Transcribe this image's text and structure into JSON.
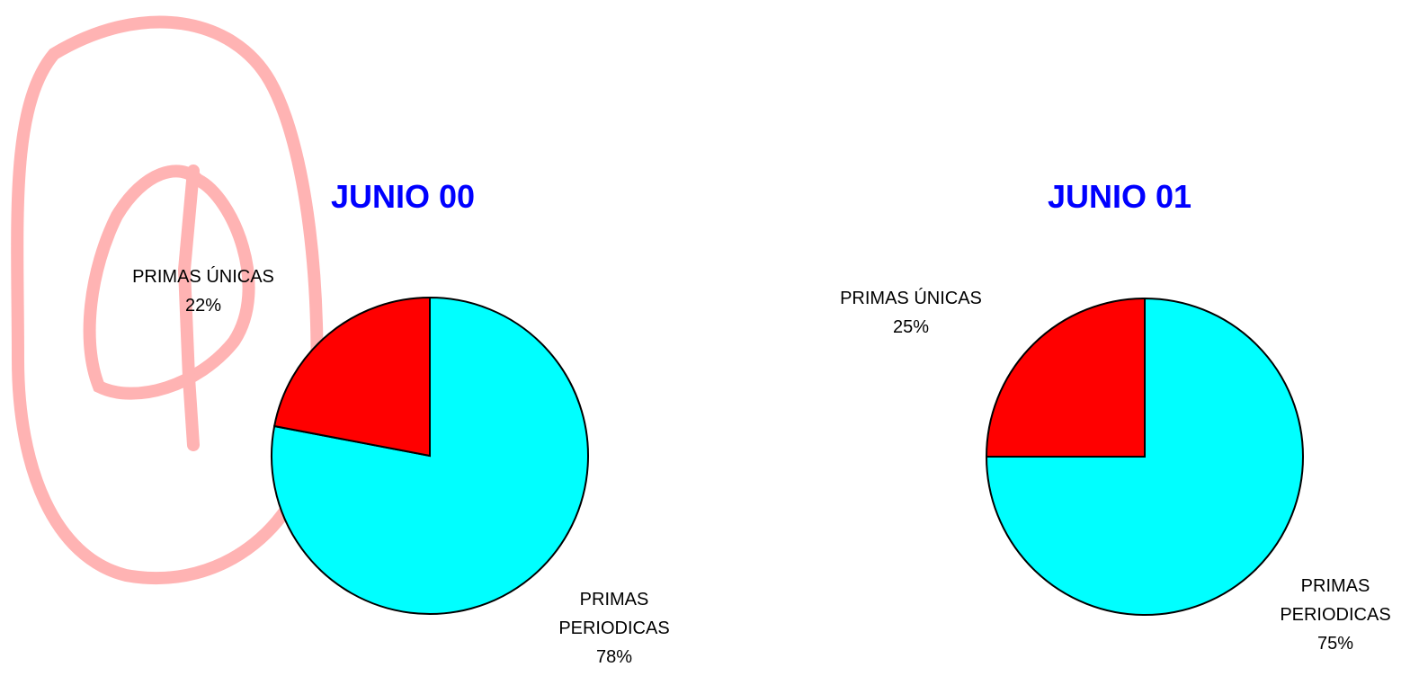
{
  "chart_data": [
    {
      "type": "pie",
      "title": "JUNIO 00",
      "categories": [
        "PRIMAS PERIODICAS",
        "PRIMAS ÚNICAS"
      ],
      "values": [
        78,
        22
      ],
      "value_labels": [
        "78%",
        "22%"
      ],
      "colors": [
        "#00ffff",
        "#ff0000"
      ]
    },
    {
      "type": "pie",
      "title": "JUNIO 01",
      "categories": [
        "PRIMAS PERIODICAS",
        "PRIMAS ÚNICAS"
      ],
      "values": [
        75,
        25
      ],
      "value_labels": [
        "75%",
        "25%"
      ],
      "colors": [
        "#00ffff",
        "#ff0000"
      ]
    }
  ]
}
